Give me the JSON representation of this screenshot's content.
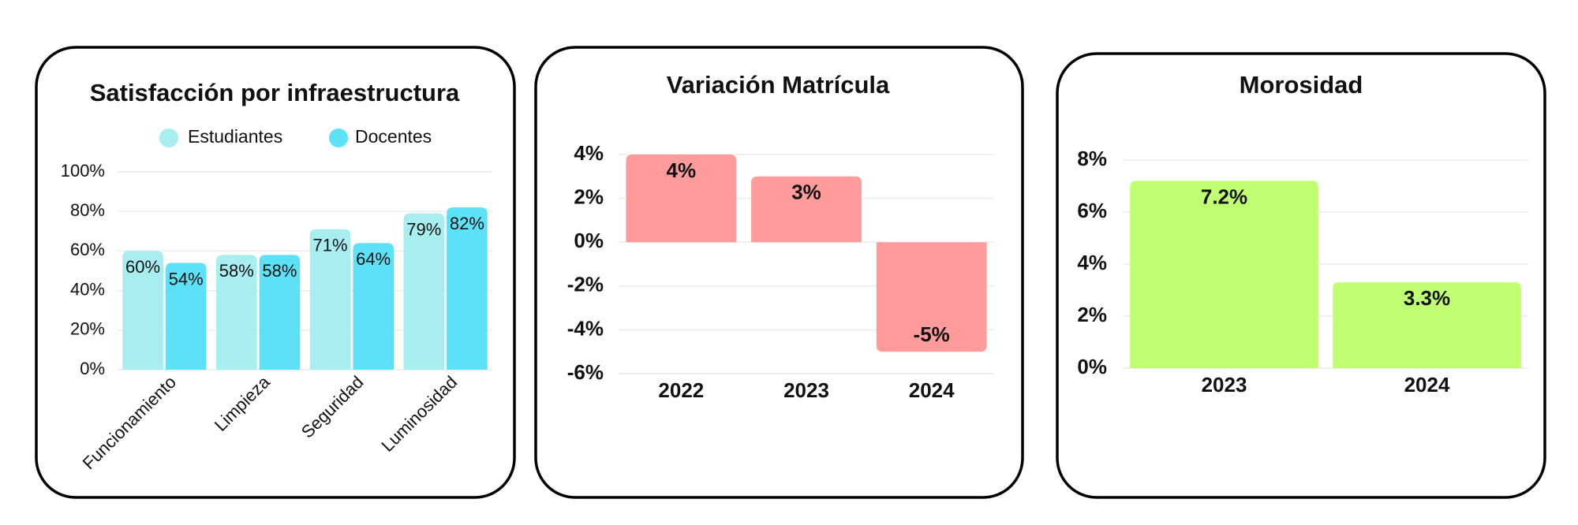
{
  "chart_data": [
    {
      "type": "bar",
      "title": "Satisfacción por infraestructura",
      "categories": [
        "Funcionamiento",
        "Limpieza",
        "Seguridad",
        "Luminosidad"
      ],
      "series": [
        {
          "name": "Estudiantes",
          "color": "#a8eef0",
          "values": [
            60,
            58,
            71,
            79
          ],
          "value_labels": [
            "60%",
            "58%",
            "71%",
            "79%"
          ]
        },
        {
          "name": "Docentes",
          "color": "#5ce1f6",
          "values": [
            54,
            58,
            64,
            82
          ],
          "value_labels": [
            "54%",
            "58%",
            "64%",
            "82%"
          ]
        }
      ],
      "ylim": [
        0,
        100
      ],
      "yticks": [
        {
          "value": 0,
          "label": "0%"
        },
        {
          "value": 20,
          "label": "20%"
        },
        {
          "value": 40,
          "label": "40%"
        },
        {
          "value": 60,
          "label": "60%"
        },
        {
          "value": 80,
          "label": "80%"
        },
        {
          "value": 100,
          "label": "100%"
        }
      ],
      "grid": true
    },
    {
      "type": "bar",
      "title": "Variación Matrícula",
      "categories": [
        "2022",
        "2023",
        "2024"
      ],
      "values": [
        4,
        3,
        -5
      ],
      "value_labels": [
        "4%",
        "3%",
        "-5%"
      ],
      "color": "#ff9b9b",
      "ylim": [
        -6,
        4
      ],
      "yticks": [
        {
          "value": -6,
          "label": "-6%"
        },
        {
          "value": -4,
          "label": "-4%"
        },
        {
          "value": -2,
          "label": "-2%"
        },
        {
          "value": 0,
          "label": "0%"
        },
        {
          "value": 2,
          "label": "2%"
        },
        {
          "value": 4,
          "label": "4%"
        }
      ],
      "grid": true
    },
    {
      "type": "bar",
      "title": "Morosidad",
      "categories": [
        "2023",
        "2024"
      ],
      "values": [
        7.2,
        3.3
      ],
      "value_labels": [
        "7.2%",
        "3.3%"
      ],
      "color": "#c1ff72",
      "ylim": [
        0,
        8
      ],
      "yticks": [
        {
          "value": 0,
          "label": "0%"
        },
        {
          "value": 2,
          "label": "2%"
        },
        {
          "value": 4,
          "label": "4%"
        },
        {
          "value": 6,
          "label": "6%"
        },
        {
          "value": 8,
          "label": "8%"
        }
      ],
      "grid": true
    }
  ]
}
